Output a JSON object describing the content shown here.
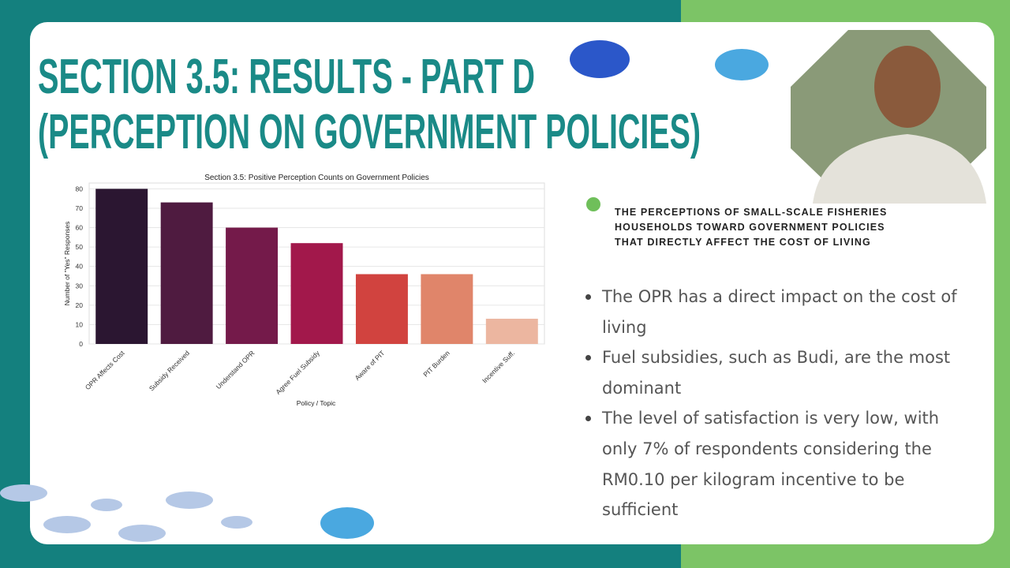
{
  "title": [
    "SECTION 3.5: RESULTS - PART D",
    "(PERCEPTION ON GOVERNMENT POLICIES)"
  ],
  "heading": [
    "THE PERCEPTIONS OF SMALL-SCALE FISHERIES",
    "HOUSEHOLDS TOWARD GOVERNMENT POLICIES",
    "THAT DIRECTLY AFFECT THE COST OF LIVING"
  ],
  "bullets": [
    "The OPR has a direct impact on the cost of living",
    "Fuel subsidies, such as Budi, are the most dominant",
    "The level of satisfaction is very low, with only 7% of respondents considering the RM0.10 per kilogram incentive to be sufficient"
  ],
  "chart_data": {
    "type": "bar",
    "title": "Section 3.5: Positive Perception Counts on Government Policies",
    "x_label": "Policy / Topic",
    "y_label": "Number of \"Yes\" Responses",
    "categories": [
      "OPR Affects Cost",
      "Subsidy Received",
      "Understand OPR",
      "Agree Fuel Subsidy",
      "Aware of PIT",
      "PIT Burden",
      "Incentive Suff."
    ],
    "values": [
      80,
      73,
      60,
      52,
      36,
      36,
      13
    ],
    "colors": [
      "#2b1631",
      "#4f1b40",
      "#741a4a",
      "#a2184b",
      "#d1433f",
      "#e0856a",
      "#ecb6a0"
    ],
    "ylim": [
      0,
      83
    ],
    "yticks": [
      0,
      10,
      20,
      30,
      40,
      50,
      60,
      70,
      80
    ],
    "grid": true
  }
}
